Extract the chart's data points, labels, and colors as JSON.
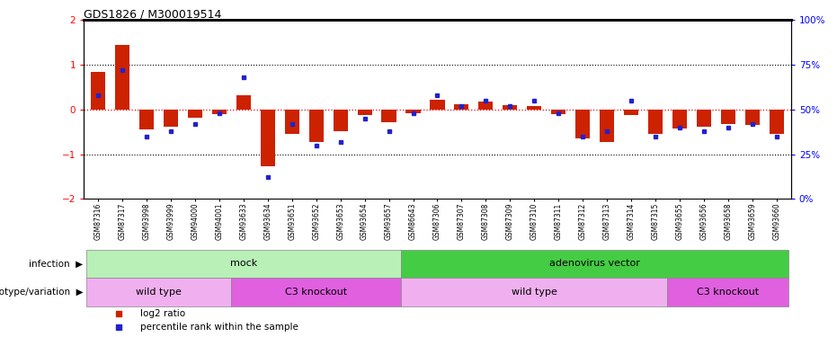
{
  "title": "GDS1826 / M300019514",
  "samples": [
    "GSM87316",
    "GSM87317",
    "GSM93998",
    "GSM93999",
    "GSM94000",
    "GSM94001",
    "GSM93633",
    "GSM93634",
    "GSM93651",
    "GSM93652",
    "GSM93653",
    "GSM93654",
    "GSM93657",
    "GSM86643",
    "GSM87306",
    "GSM87307",
    "GSM87308",
    "GSM87309",
    "GSM87310",
    "GSM87311",
    "GSM87312",
    "GSM87313",
    "GSM87314",
    "GSM87315",
    "GSM93655",
    "GSM93656",
    "GSM93658",
    "GSM93659",
    "GSM93660"
  ],
  "log2_ratio": [
    0.85,
    1.45,
    -0.45,
    -0.38,
    -0.18,
    -0.1,
    0.32,
    -1.28,
    -0.55,
    -0.72,
    -0.48,
    -0.12,
    -0.28,
    -0.08,
    0.22,
    0.12,
    0.18,
    0.1,
    0.08,
    -0.1,
    -0.65,
    -0.72,
    -0.12,
    -0.55,
    -0.42,
    -0.38,
    -0.32,
    -0.35,
    -0.55
  ],
  "percentile_rank": [
    58,
    72,
    35,
    38,
    42,
    48,
    68,
    12,
    42,
    30,
    32,
    45,
    38,
    48,
    58,
    52,
    55,
    52,
    55,
    48,
    35,
    38,
    55,
    35,
    40,
    38,
    40,
    42,
    35
  ],
  "infection_groups": [
    {
      "label": "mock",
      "start": 0,
      "end": 13,
      "color": "#b8f0b8"
    },
    {
      "label": "adenovirus vector",
      "start": 13,
      "end": 29,
      "color": "#44cc44"
    }
  ],
  "genotype_groups": [
    {
      "label": "wild type",
      "start": 0,
      "end": 6,
      "color": "#f0b0f0"
    },
    {
      "label": "C3 knockout",
      "start": 6,
      "end": 13,
      "color": "#e060e0"
    },
    {
      "label": "wild type",
      "start": 13,
      "end": 24,
      "color": "#f0b0f0"
    },
    {
      "label": "C3 knockout",
      "start": 24,
      "end": 29,
      "color": "#e060e0"
    }
  ],
  "ylim": [
    -2,
    2
  ],
  "bar_color": "#cc2200",
  "dot_color": "#2222cc",
  "infection_label": "infection",
  "genotype_label": "genotype/variation",
  "legend_items": [
    {
      "label": "log2 ratio",
      "color": "#cc2200"
    },
    {
      "label": "percentile rank within the sample",
      "color": "#2222cc"
    }
  ]
}
